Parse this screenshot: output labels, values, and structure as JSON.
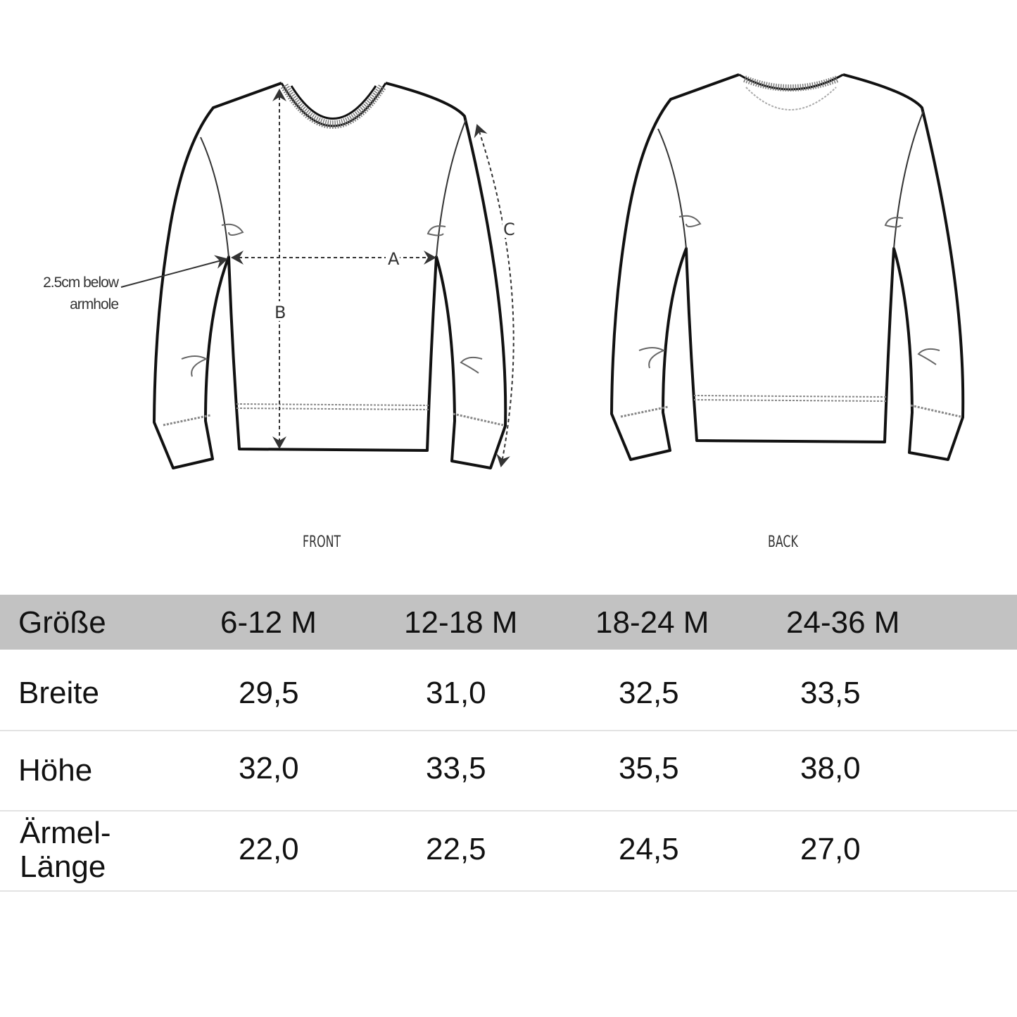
{
  "diagram": {
    "front_label": "FRONT",
    "back_label": "BACK",
    "note": [
      "2.5cm below",
      "armhole"
    ],
    "measure_labels": {
      "a": "A",
      "b": "B",
      "c": "C"
    }
  },
  "table": {
    "header_label": "Größe",
    "sizes": [
      "6-12 M",
      "12-18 M",
      "18-24 M",
      "24-36 M"
    ],
    "rows": [
      {
        "label": [
          "Breite"
        ],
        "values": [
          "29,5",
          "31,0",
          "32,5",
          "33,5"
        ]
      },
      {
        "label": [
          "Höhe"
        ],
        "values": [
          "32,0",
          "33,5",
          "35,5",
          "38,0"
        ]
      },
      {
        "label": [
          "Ärmel-",
          "Länge"
        ],
        "values": [
          "22,0",
          "22,5",
          "24,5",
          "27,0"
        ]
      }
    ],
    "header_color": "#c2c2c2"
  }
}
